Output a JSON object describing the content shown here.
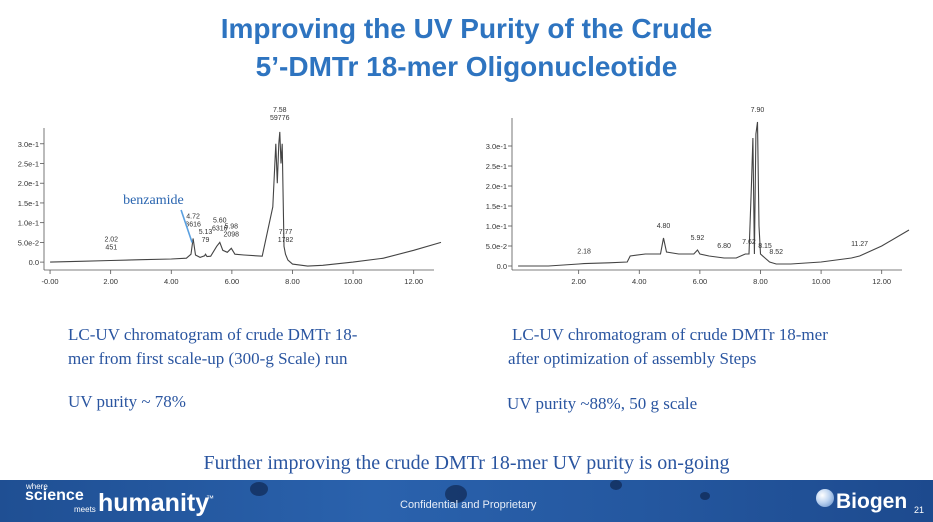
{
  "slide": {
    "title_line1": "Improving the UV Purity of the Crude",
    "title_line2": "5’-DMTr 18-mer Oligonucleotide",
    "left_caption_line1": "LC-UV chromatogram of crude DMTr 18-",
    "left_caption_line2": "mer  from first  scale-up (300-g Scale) run",
    "left_purity": "UV purity ~ 78%",
    "right_caption_line1": "LC-UV chromatogram of crude DMTr 18-mer",
    "right_caption_line2": "after optimization of assembly Steps",
    "right_purity": "UV purity ~88%, 50 g scale",
    "footer_note": "Further improving the crude DMTr 18-mer UV purity is on-going",
    "footer_confidential": "Confidential and Proprietary",
    "brand_where": "where",
    "brand_science": "science",
    "brand_meets": "meets",
    "brand_humanity": "humanity",
    "brand_tm": "™",
    "company": "Biogen",
    "page_number": "21"
  },
  "colors": {
    "title": "#2e74c0",
    "text": "#2a55a0",
    "trace": "#444444",
    "banner": "#24579f"
  },
  "chart_data": [
    {
      "type": "line",
      "title": "",
      "xlabel": "",
      "ylabel": "",
      "xlim": [
        -0.2,
        13.0
      ],
      "ylim": [
        -0.02,
        0.34
      ],
      "x_ticks": [
        "-0.00",
        "2.00",
        "4.00",
        "6.00",
        "8.00",
        "10.00",
        "12.00"
      ],
      "x_tick_values": [
        0,
        2,
        4,
        6,
        8,
        10,
        12
      ],
      "y_ticks": [
        "0.0",
        "5.0e-2",
        "1.0e-1",
        "1.5e-1",
        "2.0e-1",
        "2.5e-1",
        "3.0e-1"
      ],
      "y_tick_values": [
        0,
        0.05,
        0.1,
        0.15,
        0.2,
        0.25,
        0.3
      ],
      "series": [
        {
          "x": [
            0,
            1,
            2,
            3,
            4,
            4.5,
            4.65,
            4.72,
            4.8,
            4.95,
            5.1,
            5.13,
            5.18,
            5.3,
            5.5,
            5.6,
            5.7,
            5.85,
            5.98,
            6.1,
            6.4,
            7.0,
            7.35,
            7.45,
            7.5,
            7.55,
            7.58,
            7.62,
            7.66,
            7.72,
            7.77,
            7.85,
            8.0,
            8.5,
            9.0,
            10.0,
            11.0,
            12.0,
            12.9
          ],
          "y": [
            0,
            0.002,
            0.004,
            0.006,
            0.008,
            0.01,
            0.02,
            0.06,
            0.018,
            0.012,
            0.016,
            0.02,
            0.014,
            0.015,
            0.04,
            0.05,
            0.03,
            0.025,
            0.035,
            0.02,
            0.018,
            0.015,
            0.14,
            0.3,
            0.2,
            0.3,
            0.33,
            0.25,
            0.3,
            0.04,
            0.02,
            0.005,
            -0.005,
            -0.01,
            -0.008,
            0.0,
            0.01,
            0.03,
            0.05
          ]
        }
      ],
      "peak_labels": [
        {
          "x": 2.02,
          "y": 0.002,
          "rt": "2.02",
          "area": "451"
        },
        {
          "x": 4.72,
          "y": 0.06,
          "rt": "4.72",
          "area": "3616"
        },
        {
          "x": 5.13,
          "y": 0.02,
          "rt": "5.13",
          "area": "79"
        },
        {
          "x": 5.6,
          "y": 0.05,
          "rt": "5.60",
          "area": "6316"
        },
        {
          "x": 5.98,
          "y": 0.035,
          "rt": "5.98",
          "area": "2098"
        },
        {
          "x": 7.58,
          "y": 0.33,
          "rt": "7.58",
          "area": "59776"
        },
        {
          "x": 7.77,
          "y": 0.02,
          "rt": "7.77",
          "area": "1782"
        }
      ],
      "annotation": {
        "text": "benzamide",
        "x": 4.72,
        "y": 0.06
      }
    },
    {
      "type": "line",
      "title": "",
      "xlabel": "",
      "ylabel": "",
      "xlim": [
        -0.2,
        13.0
      ],
      "ylim": [
        -0.01,
        0.37
      ],
      "x_ticks": [
        "2.00",
        "4.00",
        "6.00",
        "8.00",
        "10.00",
        "12.00"
      ],
      "x_tick_values": [
        2,
        4,
        6,
        8,
        10,
        12
      ],
      "y_ticks": [
        "0.0",
        "5.0e-2",
        "1.0e-1",
        "1.5e-1",
        "2.0e-1",
        "2.5e-1",
        "3.0e-1"
      ],
      "y_tick_values": [
        0,
        0.05,
        0.1,
        0.15,
        0.2,
        0.25,
        0.3
      ],
      "series": [
        {
          "x": [
            0,
            1,
            2,
            2.18,
            3,
            3.6,
            3.7,
            4.2,
            4.7,
            4.8,
            4.9,
            5.3,
            5.8,
            5.92,
            6.0,
            6.3,
            6.8,
            7.2,
            7.5,
            7.62,
            7.7,
            7.75,
            7.8,
            7.85,
            7.9,
            7.95,
            8.0,
            8.15,
            8.3,
            8.52,
            9.0,
            10.0,
            11.0,
            11.27,
            12.0,
            12.9
          ],
          "y": [
            0,
            0,
            0.005,
            0.006,
            0.008,
            0.01,
            0.025,
            0.03,
            0.03,
            0.07,
            0.035,
            0.03,
            0.03,
            0.04,
            0.03,
            0.025,
            0.02,
            0.02,
            0.03,
            0.03,
            0.2,
            0.32,
            0.03,
            0.33,
            0.36,
            0.1,
            0.03,
            0.02,
            0.01,
            0.005,
            0.005,
            0.01,
            0.02,
            0.025,
            0.05,
            0.09
          ]
        }
      ],
      "peak_labels": [
        {
          "x": 2.18,
          "y": 0.006,
          "rt": "2.18"
        },
        {
          "x": 4.8,
          "y": 0.07,
          "rt": "4.80"
        },
        {
          "x": 5.92,
          "y": 0.04,
          "rt": "5.92"
        },
        {
          "x": 6.8,
          "y": 0.02,
          "rt": "6.80"
        },
        {
          "x": 7.62,
          "y": 0.03,
          "rt": "7.62"
        },
        {
          "x": 7.9,
          "y": 0.36,
          "rt": "7.90"
        },
        {
          "x": 8.15,
          "y": 0.02,
          "rt": "8.15"
        },
        {
          "x": 8.52,
          "y": 0.005,
          "rt": "8.52"
        },
        {
          "x": 11.27,
          "y": 0.025,
          "rt": "11.27"
        }
      ]
    }
  ]
}
